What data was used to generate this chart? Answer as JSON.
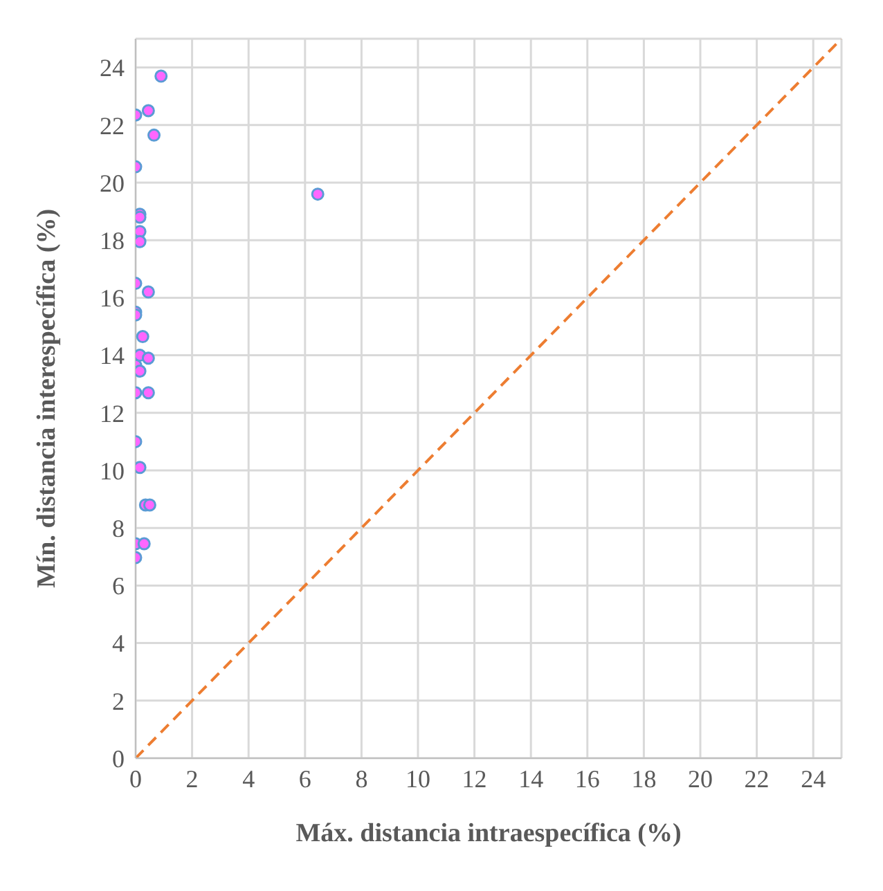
{
  "chart_data": {
    "type": "scatter",
    "xlabel": "Máx. distancia intraespecífica (%)",
    "ylabel": "Mín. distancia interespecífica (%)",
    "xlim": [
      0,
      25
    ],
    "ylim": [
      0,
      25
    ],
    "xticks": [
      0,
      2,
      4,
      6,
      8,
      10,
      12,
      14,
      16,
      18,
      20,
      22,
      24
    ],
    "yticks": [
      0,
      2,
      4,
      6,
      8,
      10,
      12,
      14,
      16,
      18,
      20,
      22,
      24
    ],
    "grid": true,
    "legend": false,
    "series": [
      {
        "type": "scatter",
        "color": "#ff66ff",
        "marker": "circle",
        "x": [
          0.9,
          0,
          0.45,
          0.65,
          0,
          6.45,
          0.15,
          0.15,
          0.15,
          0.15,
          0,
          0.45,
          0,
          0,
          0.25,
          0.15,
          0.45,
          0,
          0.15,
          0,
          0.45,
          0,
          0.15,
          0.35,
          0.5,
          0,
          0.3,
          0
        ],
        "values": [
          23.7,
          22.35,
          22.5,
          21.65,
          20.55,
          19.6,
          18.9,
          18.8,
          18.3,
          17.95,
          16.5,
          16.2,
          15.5,
          15.4,
          14.65,
          14.0,
          13.9,
          13.65,
          13.45,
          12.7,
          12.7,
          11.0,
          10.1,
          8.8,
          8.8,
          7.45,
          7.45,
          6.97
        ]
      },
      {
        "type": "line",
        "color": "#ed7d31",
        "marker": "none",
        "line_style": "dashed",
        "x": [
          0,
          25
        ],
        "values": [
          0,
          25
        ]
      }
    ]
  }
}
